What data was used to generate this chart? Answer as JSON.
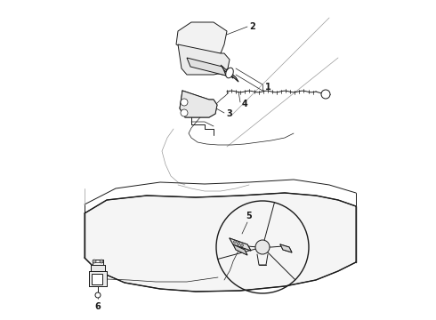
{
  "bg_color": "#ffffff",
  "line_color": "#1a1a1a",
  "gray_color": "#999999",
  "light_gray": "#cccccc",
  "fig_width": 4.9,
  "fig_height": 3.6,
  "dpi": 100
}
